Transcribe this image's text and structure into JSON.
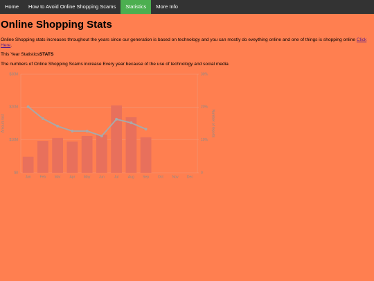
{
  "nav": {
    "items": [
      "Home",
      "How to Avoid Online Shopping Scams",
      "Statistics",
      "More Info"
    ],
    "active": 2
  },
  "heading": "Online Shopping Stats",
  "intro_text": "Online Shopping stats increases throughout the years since our generation is based on technology and you can mostly do eveything online and one of things is shopping online ",
  "intro_link": "Click Here",
  "intro_end": ".",
  "stats_text": "This Year Statistics",
  "stats_bold": "STATS",
  "note": "The numbers of Online Shopping Scams increase Every year because of the use of technology and social media",
  "chart_data": {
    "type": "bar",
    "categories": [
      "Jan",
      "Feb",
      "Mar",
      "Apr",
      "May",
      "Jun",
      "Jul",
      "Aug",
      "Sep",
      "Oct",
      "Nov",
      "Dec"
    ],
    "ylabel": "Amount lost",
    "y2label": "Number of reports",
    "series": [
      {
        "type": "bar",
        "color": "#e8705c",
        "values": [
          4900000,
          9700000,
          10600000,
          9500000,
          11200000,
          11600000,
          20500000,
          16900000,
          10800000,
          null,
          null,
          null
        ]
      },
      {
        "type": "line",
        "axis": "y2",
        "color": "#a9a9a9",
        "values": [
          20.1,
          16.5,
          14.2,
          12.7,
          12.7,
          11.2,
          16.3,
          15.2,
          13.3,
          null,
          null,
          null
        ]
      }
    ],
    "ylim": [
      0,
      30000000
    ],
    "yticks": [
      {
        "value": 0,
        "label": "$0"
      },
      {
        "value": 10000000,
        "label": "$10M"
      },
      {
        "value": 20000000,
        "label": "$20M"
      },
      {
        "value": 30000000,
        "label": "$30M"
      }
    ],
    "y2lim": [
      0,
      30
    ],
    "y2ticks": [
      0,
      {
        "value": 10,
        "label": "10%"
      },
      {
        "value": 20,
        "label": "20%"
      },
      {
        "value": 30,
        "label": "30%"
      }
    ],
    "grid": true
  }
}
